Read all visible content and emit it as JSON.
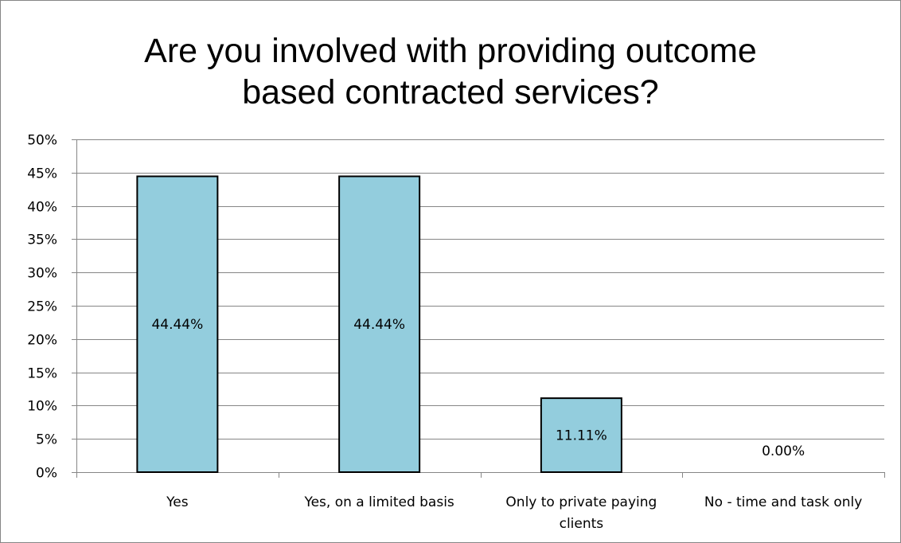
{
  "chart_data": {
    "type": "bar",
    "title_lines": [
      "Are you involved with providing outcome",
      "based contracted services?"
    ],
    "categories": [
      [
        "Yes"
      ],
      [
        "Yes, on a limited basis"
      ],
      [
        "Only to private paying",
        "clients"
      ],
      [
        "No - time and task only"
      ]
    ],
    "values": [
      44.44,
      44.44,
      11.11,
      0.0
    ],
    "data_labels": [
      "44.44%",
      "44.44%",
      "11.11%",
      "0.00%"
    ],
    "y_ticks": [
      "0%",
      "5%",
      "10%",
      "15%",
      "20%",
      "25%",
      "30%",
      "35%",
      "40%",
      "45%",
      "50%"
    ],
    "ylim": [
      0,
      50
    ],
    "grid": true,
    "legend": "none",
    "bar_color": "#93CDDD",
    "bar_edge_color": "#000000",
    "grid_color": "#868686"
  }
}
